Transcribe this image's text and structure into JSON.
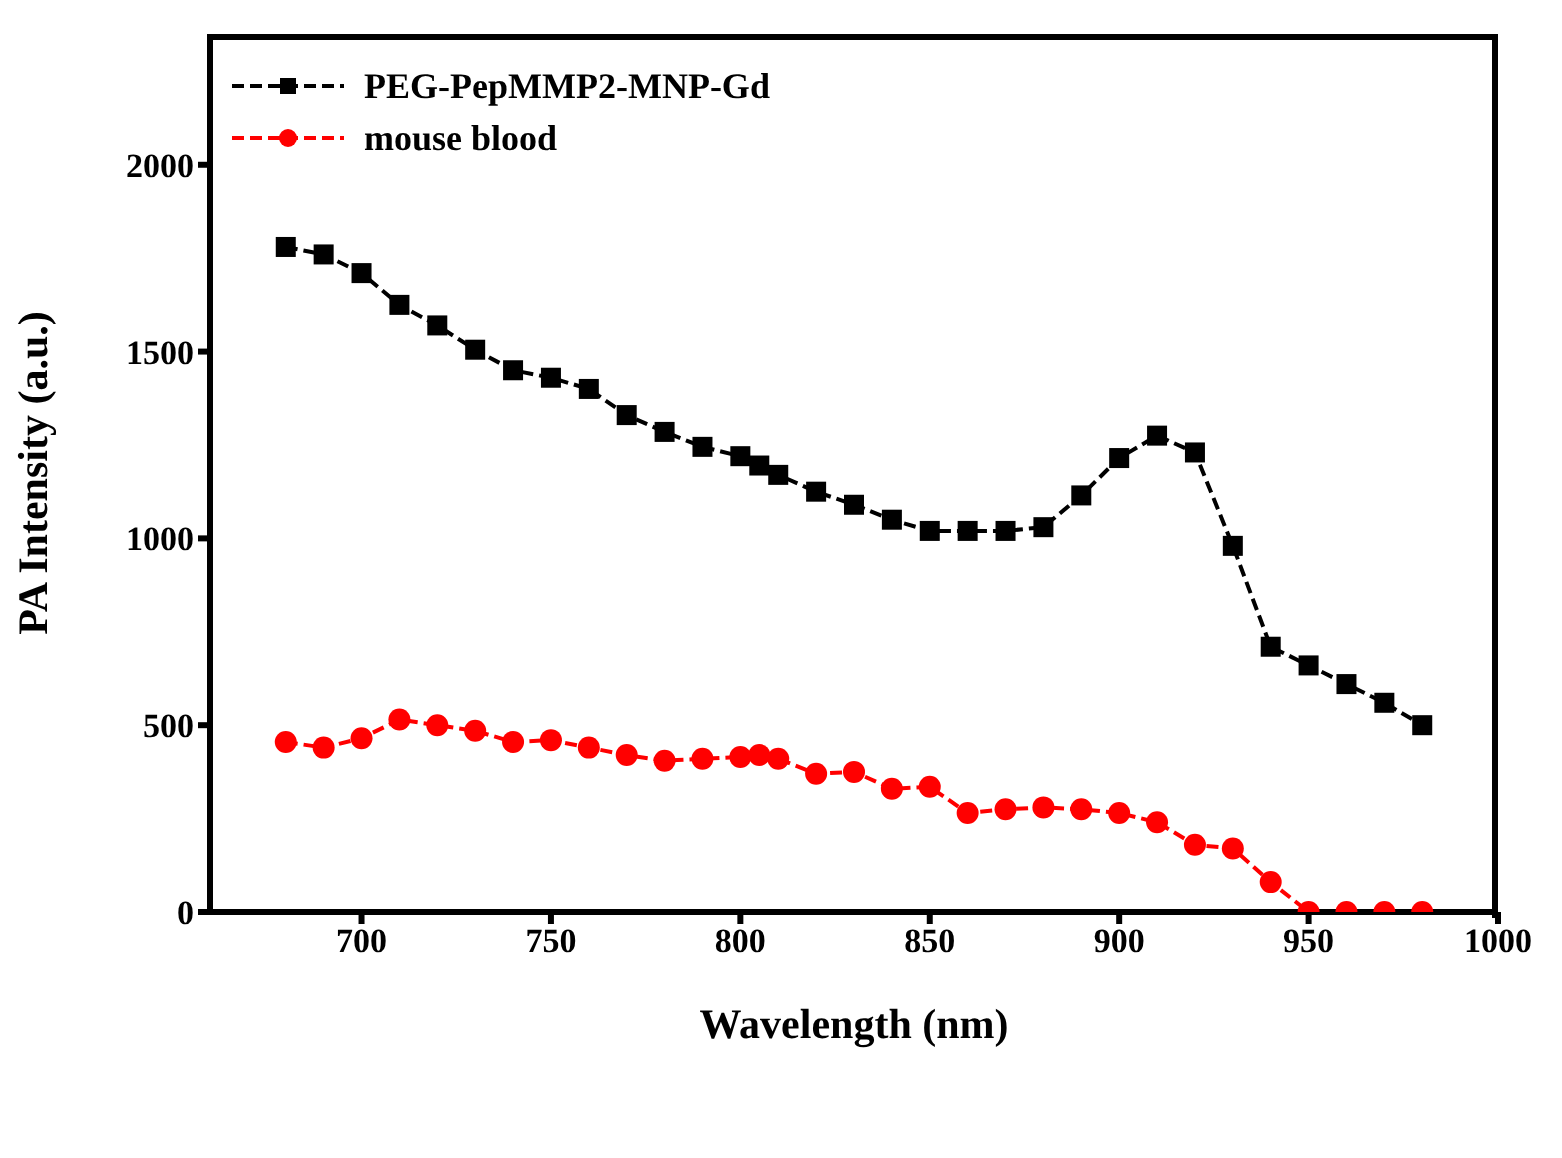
{
  "chart_data": {
    "type": "line",
    "xlabel": "Wavelength (nm)",
    "ylabel": "PA Intensity (a.u.)",
    "x": [
      680,
      690,
      700,
      710,
      720,
      730,
      740,
      750,
      760,
      770,
      780,
      790,
      800,
      805,
      810,
      820,
      830,
      840,
      850,
      860,
      870,
      880,
      890,
      900,
      910,
      920,
      930,
      940,
      950,
      960,
      970,
      980
    ],
    "series": [
      {
        "name": "PEG-PepMMP2-MNP-Gd",
        "color": "#000000",
        "marker": "square",
        "values": [
          1780,
          1760,
          1710,
          1625,
          1570,
          1505,
          1450,
          1430,
          1400,
          1330,
          1285,
          1245,
          1220,
          1195,
          1170,
          1125,
          1090,
          1050,
          1020,
          1020,
          1020,
          1030,
          1115,
          1215,
          1275,
          1230,
          980,
          710,
          660,
          610,
          560,
          500
        ]
      },
      {
        "name": "mouse blood",
        "color": "#ff0000",
        "marker": "circle",
        "values": [
          455,
          440,
          465,
          515,
          500,
          485,
          455,
          460,
          440,
          420,
          405,
          410,
          415,
          420,
          410,
          370,
          375,
          330,
          335,
          265,
          275,
          280,
          275,
          265,
          240,
          180,
          170,
          80,
          0,
          0,
          0,
          0
        ]
      }
    ],
    "xlim": [
      660,
      1000
    ],
    "xticks": [
      700,
      750,
      800,
      850,
      900,
      950,
      1000
    ],
    "ylim": [
      0,
      2350
    ],
    "yticks": [
      0,
      500,
      1000,
      1500,
      2000
    ],
    "legend": "top left",
    "line_style": "dashed"
  }
}
